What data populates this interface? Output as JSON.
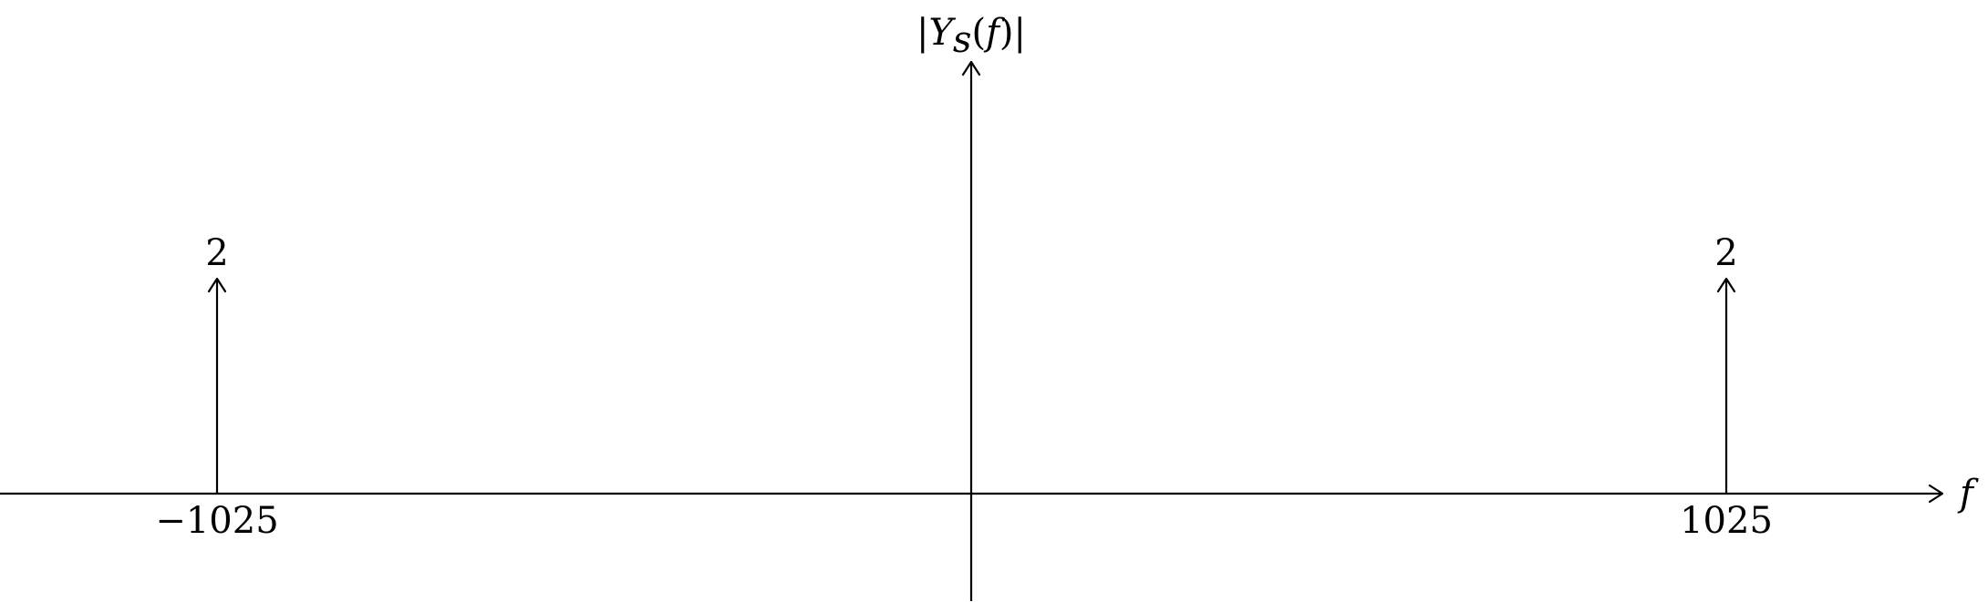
{
  "diagram": {
    "y_axis_label": "|Y_s(f)|",
    "y_axis_label_parts": {
      "bar_left": "|",
      "Y": "Y",
      "sub": "s",
      "paren_open": "(",
      "f": "f",
      "paren_close": ")",
      "bar_right": "|"
    },
    "x_axis_label": "f",
    "impulses": [
      {
        "frequency": -1025,
        "frequency_label": "−1025",
        "amplitude": 2,
        "amplitude_label": "2"
      },
      {
        "frequency": 1025,
        "frequency_label": "1025",
        "amplitude": 2,
        "amplitude_label": "2"
      }
    ]
  }
}
